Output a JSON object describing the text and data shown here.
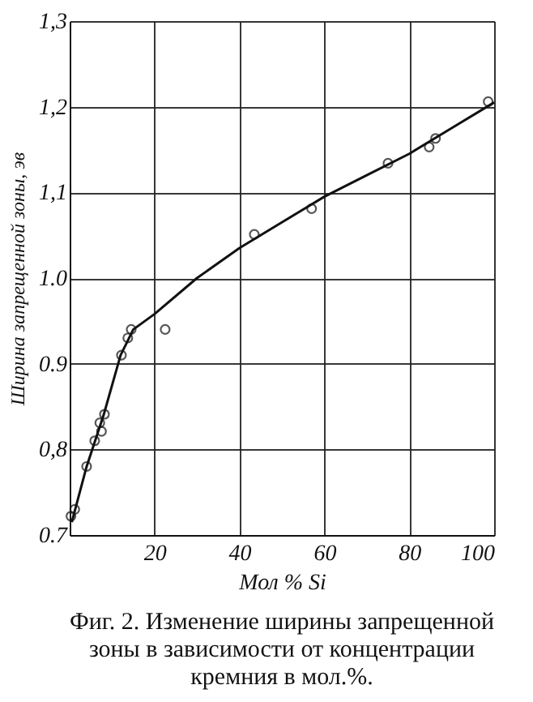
{
  "chart_data": {
    "type": "scatter",
    "xlabel": "Мол % Si",
    "ylabel": "Ширина запрещенной зоны, эв",
    "annotations": [
      "Фиг. 2. Изменение ширины запрещенной зоны в зависимости от концентрации кремния в мол.%."
    ],
    "xlim": [
      0,
      100
    ],
    "ylim": [
      0.7,
      1.3
    ],
    "xticks": [
      20,
      40,
      60,
      80,
      100
    ],
    "yticks": [
      {
        "value": 0.7,
        "label": "0.7"
      },
      {
        "value": 0.8,
        "label": "0,8"
      },
      {
        "value": 0.9,
        "label": "0.9"
      },
      {
        "value": 1.0,
        "label": "1.0"
      },
      {
        "value": 1.1,
        "label": "1,1"
      },
      {
        "value": 1.2,
        "label": "1,2"
      },
      {
        "value": 1.3,
        "label": "1,3"
      }
    ],
    "grid": true,
    "series": [
      {
        "marker": "circle",
        "color": "#111111",
        "x": [
          0.3,
          1.2,
          4,
          5.9,
          7.1,
          7.5,
          8.2,
          12.2,
          13.7,
          14.5,
          22.5,
          43.5,
          57,
          75,
          84.7,
          86.2,
          98.6
        ],
        "values": [
          0.722,
          0.73,
          0.78,
          0.81,
          0.831,
          0.821,
          0.841,
          0.91,
          0.93,
          0.94,
          0.94,
          1.051,
          1.081,
          1.134,
          1.153,
          1.163,
          1.206
        ]
      },
      {
        "type": "line",
        "marker": "none",
        "line_style": "solid",
        "color": "#111111",
        "x": [
          0.5,
          4,
          8,
          12,
          15,
          20,
          30,
          40,
          50,
          60,
          70,
          80,
          90,
          100
        ],
        "values": [
          0.715,
          0.78,
          0.84,
          0.91,
          0.94,
          0.958,
          1.0,
          1.035,
          1.065,
          1.095,
          1.12,
          1.145,
          1.175,
          1.205
        ]
      }
    ]
  }
}
